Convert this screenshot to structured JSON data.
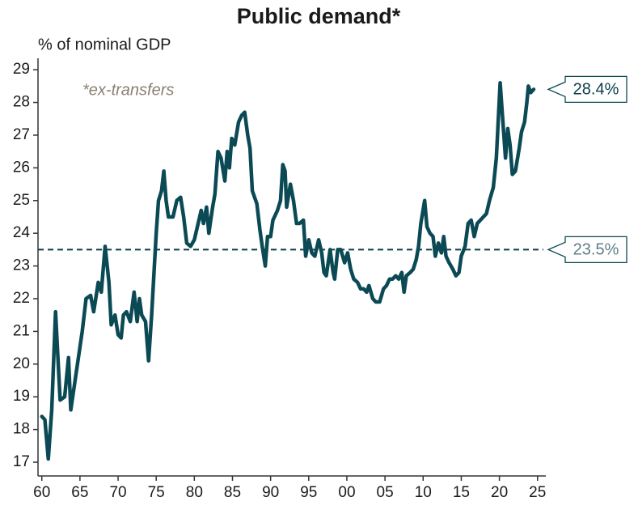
{
  "chart_data": {
    "type": "line",
    "title": "Public demand*",
    "subtitle": "*ex-transfers",
    "y_label": "% of nominal GDP",
    "color": "#0b4a55",
    "xlim": [
      1959.5,
      2026.3
    ],
    "ylim": [
      16.58,
      29.35
    ],
    "xticks": [
      {
        "value": 1960,
        "label": "60"
      },
      {
        "value": 1965,
        "label": "65"
      },
      {
        "value": 1970,
        "label": "70"
      },
      {
        "value": 1975,
        "label": "75"
      },
      {
        "value": 1980,
        "label": "80"
      },
      {
        "value": 1985,
        "label": "85"
      },
      {
        "value": 1990,
        "label": "90"
      },
      {
        "value": 1995,
        "label": "95"
      },
      {
        "value": 2000,
        "label": "00"
      },
      {
        "value": 2005,
        "label": "05"
      },
      {
        "value": 2010,
        "label": "10"
      },
      {
        "value": 2015,
        "label": "15"
      },
      {
        "value": 2020,
        "label": "20"
      },
      {
        "value": 2025,
        "label": "25"
      }
    ],
    "yticks": [
      17,
      18,
      19,
      20,
      21,
      22,
      23,
      24,
      25,
      26,
      27,
      28,
      29
    ],
    "reference_line": {
      "value": 23.5,
      "label": "23.5%"
    },
    "end_label": {
      "value": 28.4,
      "label": "28.4%"
    },
    "x": [
      1960.0,
      1960.4,
      1960.85,
      1961.3,
      1961.8,
      1962.4,
      1963.0,
      1963.5,
      1963.8,
      1964.3,
      1964.8,
      1965.3,
      1965.8,
      1966.4,
      1966.8,
      1967.4,
      1967.8,
      1968.3,
      1968.8,
      1969.1,
      1969.6,
      1970.0,
      1970.4,
      1970.7,
      1971.1,
      1971.6,
      1972.1,
      1972.5,
      1972.8,
      1973.1,
      1973.6,
      1974.0,
      1974.4,
      1975.0,
      1975.3,
      1975.7,
      1976.0,
      1976.3,
      1976.6,
      1977.2,
      1977.7,
      1978.2,
      1978.6,
      1979.0,
      1979.5,
      1980.0,
      1980.5,
      1980.9,
      1981.2,
      1981.6,
      1981.9,
      1982.4,
      1982.7,
      1983.1,
      1983.5,
      1984.0,
      1984.3,
      1984.6,
      1984.9,
      1985.3,
      1985.8,
      1986.2,
      1986.6,
      1987.0,
      1987.3,
      1987.6,
      1988.2,
      1988.6,
      1988.9,
      1989.3,
      1989.6,
      1990.0,
      1990.3,
      1990.9,
      1991.3,
      1991.6,
      1991.9,
      1992.1,
      1992.6,
      1993.0,
      1993.4,
      1993.8,
      1994.3,
      1994.6,
      1995.0,
      1995.4,
      1995.8,
      1996.3,
      1996.7,
      1997.0,
      1997.3,
      1997.8,
      1998.2,
      1998.4,
      1998.8,
      1999.2,
      1999.7,
      2000.1,
      2000.5,
      2000.9,
      2001.4,
      2001.8,
      2002.2,
      2002.6,
      2002.9,
      2003.4,
      2003.8,
      2004.3,
      2004.8,
      2005.2,
      2005.6,
      2006.0,
      2006.4,
      2006.8,
      2007.2,
      2007.5,
      2007.8,
      2008.3,
      2008.7,
      2009.1,
      2009.4,
      2009.7,
      2010.2,
      2010.5,
      2010.9,
      2011.3,
      2011.6,
      2012.0,
      2012.4,
      2012.7,
      2013.0,
      2013.4,
      2013.9,
      2014.3,
      2014.7,
      2015.0,
      2015.5,
      2015.9,
      2016.3,
      2016.7,
      2017.1,
      2017.5,
      2017.9,
      2018.3,
      2018.7,
      2019.2,
      2019.6,
      2020.1,
      2020.4,
      2020.8,
      2021.1,
      2021.4,
      2021.7,
      2022.1,
      2022.6,
      2022.9,
      2023.3,
      2023.6,
      2023.8,
      2024.1,
      2024.5
    ],
    "values": [
      18.4,
      18.3,
      17.1,
      18.6,
      21.6,
      18.9,
      19.0,
      20.2,
      18.6,
      19.4,
      20.2,
      21.0,
      22.0,
      22.1,
      21.6,
      22.5,
      22.2,
      23.6,
      22.5,
      21.2,
      21.5,
      20.9,
      20.8,
      21.5,
      21.6,
      21.3,
      22.2,
      21.3,
      22.0,
      21.5,
      21.3,
      20.1,
      21.5,
      24.0,
      25.0,
      25.3,
      25.9,
      25.0,
      24.5,
      24.5,
      25.0,
      25.1,
      24.5,
      23.7,
      23.6,
      23.8,
      24.3,
      24.7,
      24.3,
      24.8,
      24.0,
      24.8,
      25.2,
      26.5,
      26.3,
      25.6,
      26.5,
      26.0,
      26.9,
      26.7,
      27.4,
      27.6,
      27.7,
      27.0,
      26.6,
      25.3,
      24.9,
      24.1,
      23.6,
      23.0,
      23.9,
      23.9,
      24.4,
      24.7,
      25.0,
      26.1,
      25.9,
      24.8,
      25.5,
      25.0,
      24.3,
      24.3,
      24.4,
      23.3,
      23.8,
      23.4,
      23.3,
      23.8,
      23.4,
      22.8,
      22.7,
      23.5,
      22.8,
      22.6,
      23.5,
      23.5,
      23.1,
      23.4,
      22.9,
      22.6,
      22.5,
      22.3,
      22.3,
      22.2,
      22.4,
      22.0,
      21.9,
      21.9,
      22.3,
      22.4,
      22.6,
      22.6,
      22.7,
      22.6,
      22.8,
      22.2,
      22.7,
      22.8,
      22.9,
      23.2,
      23.6,
      24.3,
      25.0,
      24.2,
      24.0,
      23.9,
      23.3,
      23.7,
      23.4,
      23.9,
      23.3,
      23.1,
      22.9,
      22.7,
      22.8,
      23.3,
      23.6,
      24.3,
      24.4,
      23.9,
      24.3,
      24.4,
      24.5,
      24.6,
      25.0,
      25.4,
      26.3,
      28.6,
      27.6,
      26.3,
      27.2,
      26.7,
      25.8,
      25.9,
      26.6,
      27.1,
      27.4,
      28.0,
      28.5,
      28.3,
      28.4
    ]
  }
}
